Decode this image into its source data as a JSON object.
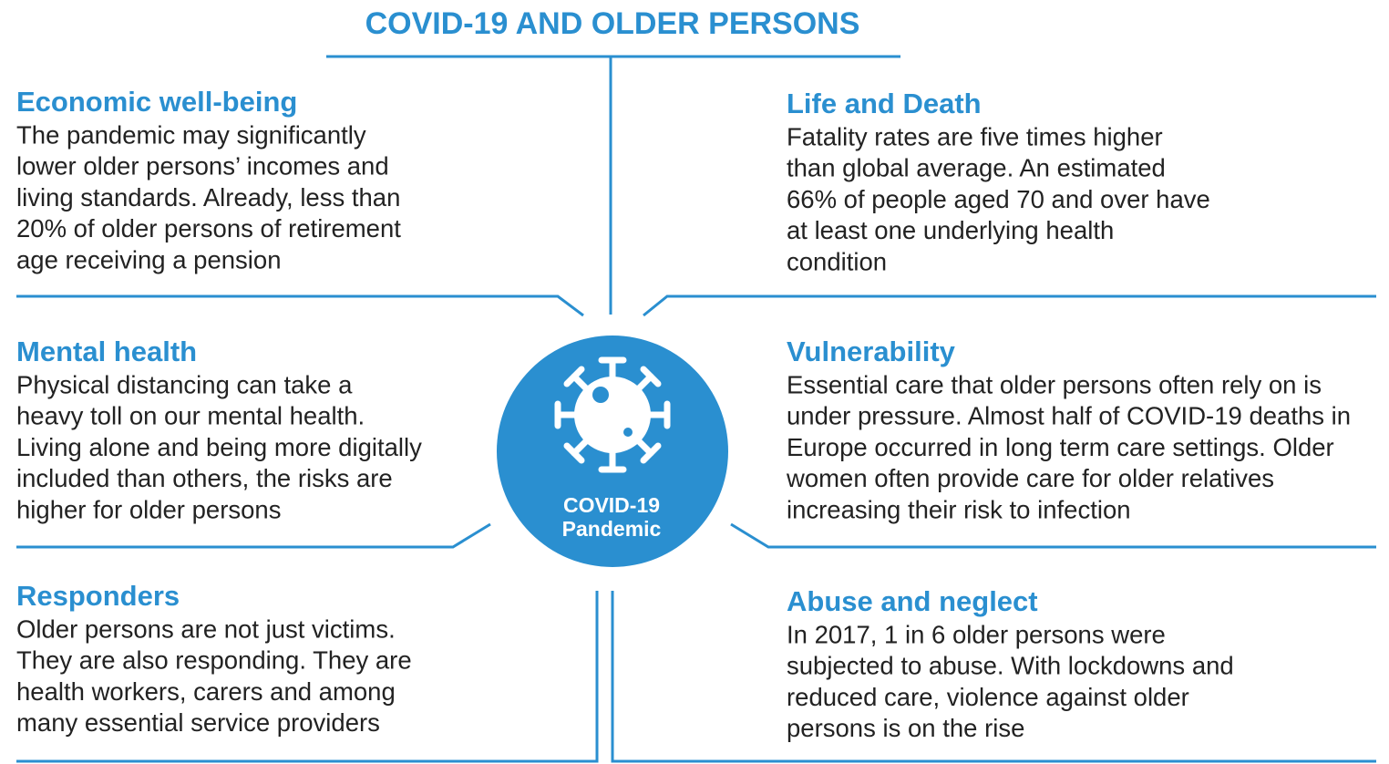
{
  "header": {
    "title": "COVID-19 AND OLDER PERSONS"
  },
  "center": {
    "lines": [
      "COVID-19",
      "Pandemic"
    ]
  },
  "sections": [
    {
      "heading": "Economic well-being",
      "lines": [
        "The pandemic may significantly",
        "lower older persons’ incomes and",
        "living standards. Already, less than",
        "20% of older persons of retirement",
        "age receiving a pension"
      ]
    },
    {
      "heading": "Life and Death",
      "lines": [
        "Fatality rates are five times higher",
        "than global average. An estimated",
        "66% of people aged 70 and over have",
        "at least one underlying health",
        "condition"
      ]
    },
    {
      "heading": "Mental health",
      "lines": [
        "Physical distancing can take a",
        "heavy toll on our mental health.",
        "Living alone and being more digitally",
        "included than others, the risks are",
        "higher for older persons"
      ]
    },
    {
      "heading": "Vulnerability",
      "lines": [
        "Essential care that older persons often rely on is",
        "under pressure. Almost half of COVID-19 deaths in",
        "Europe occurred in long term care settings. Older",
        "women often provide care for older relatives",
        "increasing their risk to infection"
      ]
    },
    {
      "heading": "Responders",
      "lines": [
        "Older persons are not just victims.",
        "They are also responding. They are",
        "health workers, carers and among",
        "many essential service providers"
      ]
    },
    {
      "heading": "Abuse and neglect",
      "lines": [
        "In 2017, 1 in 6 older persons were",
        "subjected to abuse. With lockdowns and",
        "reduced care, violence against older",
        "persons is on the rise"
      ]
    }
  ]
}
